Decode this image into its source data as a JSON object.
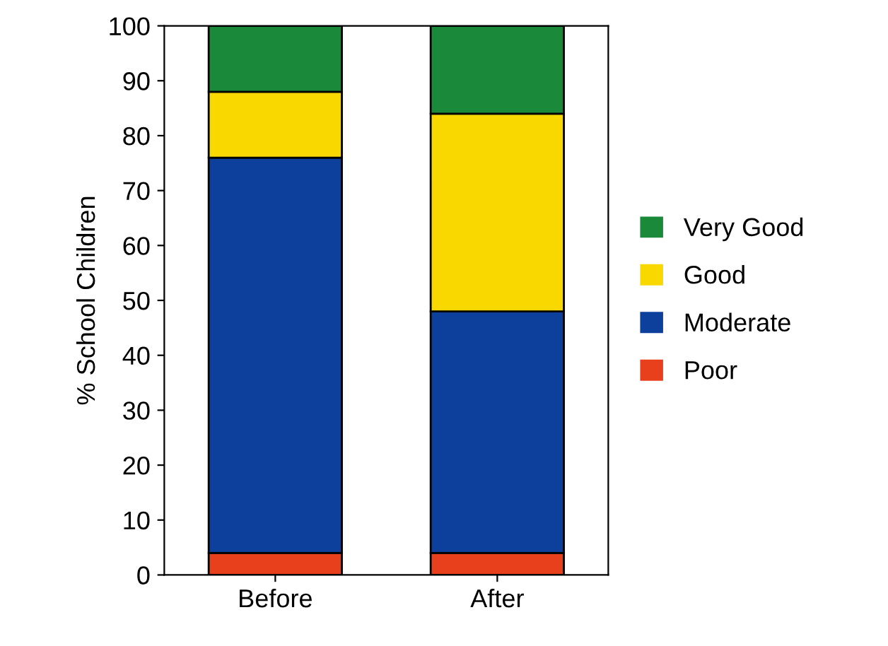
{
  "chart_data": {
    "type": "bar",
    "stacked": true,
    "ylabel": "% School Children",
    "categories": [
      "Before",
      "After"
    ],
    "series": [
      {
        "name": "Poor",
        "color": "#e8401c",
        "values": [
          4,
          4
        ]
      },
      {
        "name": "Moderate",
        "color": "#0d3f9c",
        "values": [
          72,
          44
        ]
      },
      {
        "name": "Good",
        "color": "#f9d800",
        "values": [
          12,
          36
        ]
      },
      {
        "name": "Very Good",
        "color": "#1a8a3a",
        "values": [
          12,
          16
        ]
      }
    ],
    "ylim": [
      0,
      100
    ],
    "yticks": [
      0,
      10,
      20,
      30,
      40,
      50,
      60,
      70,
      80,
      90,
      100
    ],
    "grid": false,
    "legend": "right"
  }
}
